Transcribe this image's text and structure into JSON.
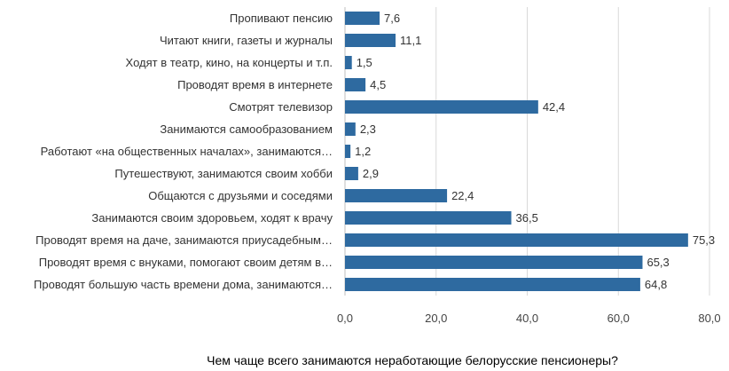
{
  "chart_data": {
    "type": "bar",
    "orientation": "horizontal",
    "categories": [
      "Пропивают пенсию",
      "Читают книги, газеты и журналы",
      "Ходят в театр, кино, на концерты и т.п.",
      "Проводят время в интернете",
      "Смотрят телевизор",
      "Занимаются самообразованием",
      "Работают «на общественных началах», занимаются…",
      "Путешествуют, занимаются своим хобби",
      "Общаются с друзьями и соседями",
      "Занимаются своим здоровьем, ходят к врачу",
      "Проводят время на даче, занимаются приусадебным…",
      "Проводят время с внуками, помогают своим детям в…",
      "Проводят большую часть времени дома, занимаются…"
    ],
    "values": [
      7.6,
      11.1,
      1.5,
      4.5,
      42.4,
      2.3,
      1.2,
      2.9,
      22.4,
      36.5,
      75.3,
      65.3,
      64.8
    ],
    "value_labels": [
      "7,6",
      "11,1",
      "1,5",
      "4,5",
      "42,4",
      "2,3",
      "1,2",
      "2,9",
      "22,4",
      "36,5",
      "75,3",
      "65,3",
      "64,8"
    ],
    "xlim": [
      0,
      80
    ],
    "x_ticks": [
      0,
      20,
      40,
      60,
      80
    ],
    "x_tick_labels": [
      "0,0",
      "20,0",
      "40,0",
      "60,0",
      "80,0"
    ],
    "grid": true,
    "bar_color": "#2e6aa0",
    "grid_color": "#d9d9d9",
    "title": "",
    "xlabel": "",
    "ylabel": ""
  },
  "caption": "Чем чаще всего занимаются неработающие белорусские пенсионеры?"
}
